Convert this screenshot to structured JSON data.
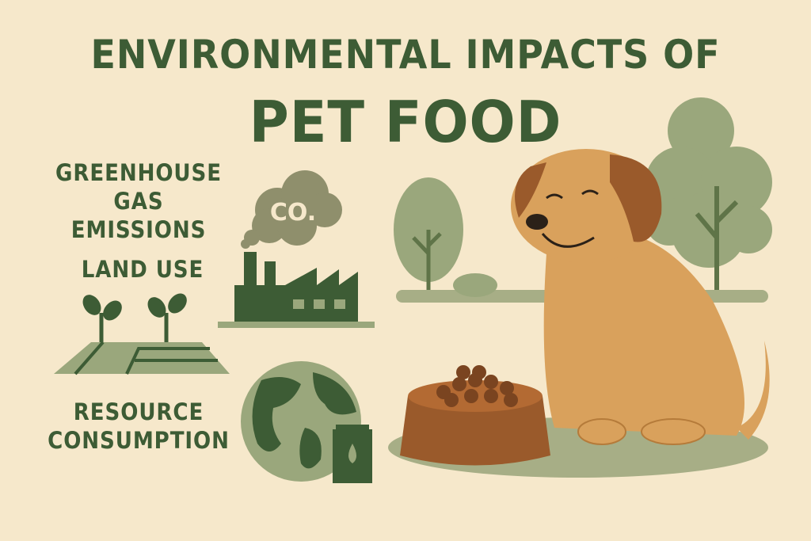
{
  "title": {
    "line1": "ENVIRONMENTAL IMPACTS OF",
    "line2": "PET FOOD"
  },
  "labels": {
    "greenhouse_line1": "GREENHOUSE",
    "greenhouse_line2": "GAS EMISSIONS",
    "land_use": "LAND USE",
    "resource_line1": "RESOURCE",
    "resource_line2": "CONSUMPTION"
  },
  "cloud_text": "CO.",
  "icons": [
    "smoke-cloud-icon",
    "factory-icon",
    "sprout-field-icon",
    "globe-icon",
    "oil-can-icon",
    "tree-icon",
    "dog-illustration",
    "food-bowl-icon"
  ],
  "colors": {
    "background": "#f6e8cb",
    "dark_green": "#3d5c35",
    "light_green": "#9aa77c",
    "dog": "#d9a15c",
    "brown": "#9a5a2b"
  }
}
